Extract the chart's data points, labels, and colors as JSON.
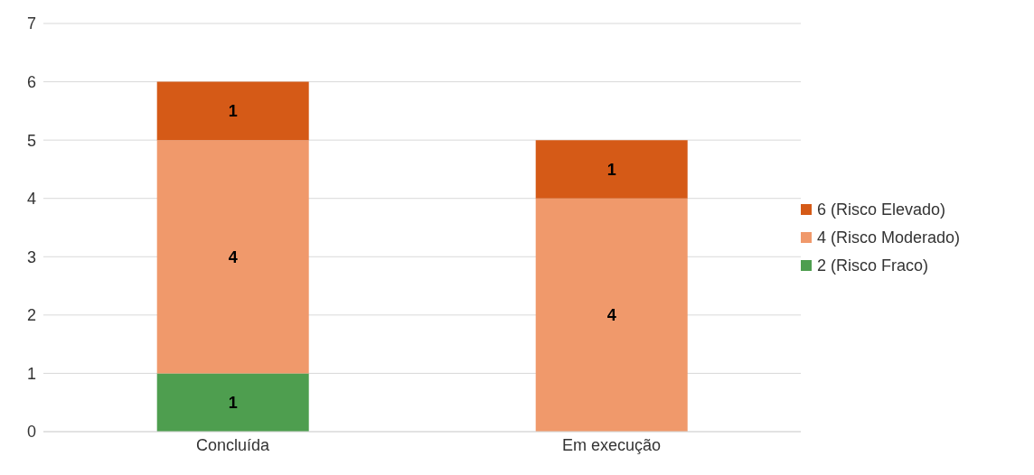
{
  "chart_data": {
    "type": "bar",
    "stacked": true,
    "categories": [
      "Concluída",
      "Em execução"
    ],
    "series": [
      {
        "name": "2 (Risco Fraco)",
        "color": "#4e9e4f",
        "values": [
          1,
          null
        ]
      },
      {
        "name": "4 (Risco Moderado)",
        "color": "#f0996b",
        "values": [
          4,
          4
        ]
      },
      {
        "name": "6 (Risco Elevado)",
        "color": "#d55a17",
        "values": [
          1,
          1
        ]
      }
    ],
    "ylim": [
      0,
      7
    ],
    "yticks": [
      0,
      1,
      2,
      3,
      4,
      5,
      6,
      7
    ],
    "grid": "y",
    "legend": "right",
    "data_labels": true
  }
}
